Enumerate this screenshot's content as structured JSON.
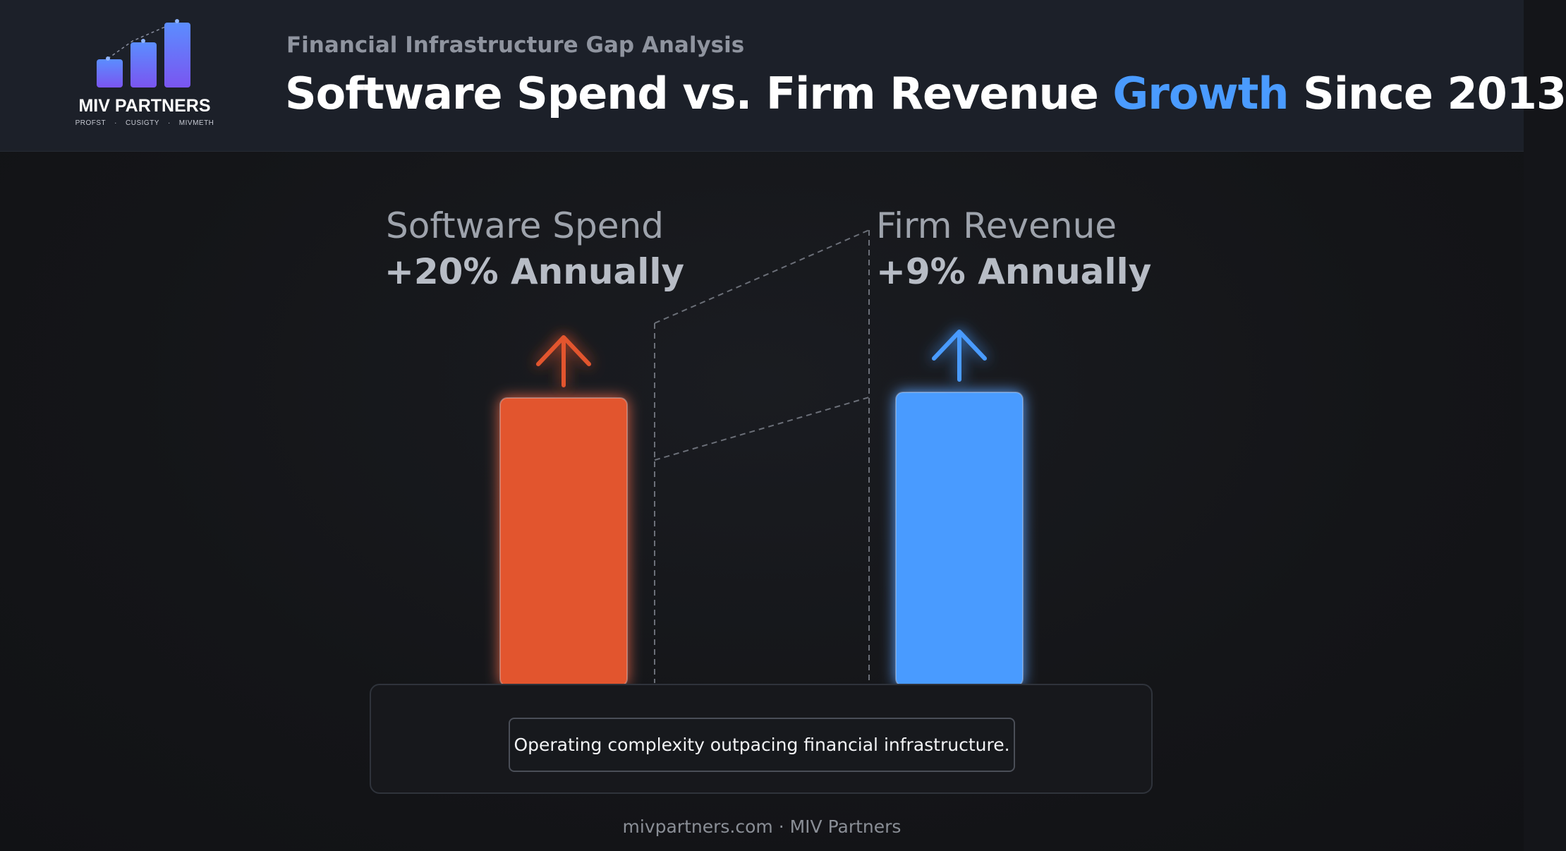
{
  "brand": {
    "name": "MIV PARTNERS",
    "tagline": [
      "PROFST",
      "CUSIGTY",
      "MIVMETH"
    ],
    "logo_colors": [
      "#6a5cf0",
      "#4e8cff"
    ]
  },
  "header": {
    "eyebrow": "Financial Infrastructure Gap Analysis",
    "title_before": "Software Spend vs. Firm Revenue ",
    "title_accent": "Growth",
    "title_after": " Since 2013",
    "accent_color": "#4a9bff"
  },
  "chart_data": {
    "type": "bar",
    "title": "Software Spend vs. Firm Revenue Growth Since 2013",
    "categories": [
      "Software Spend",
      "Firm Revenue"
    ],
    "series": [
      {
        "name": "Software Spend",
        "label": "+20% Annually",
        "value": 20,
        "unit": "% annually",
        "color": "#e2552f",
        "arrow": "up-arrow-icon"
      },
      {
        "name": "Firm Revenue",
        "label": "+9% Annually",
        "value": 9,
        "unit": "% annually",
        "color": "#4a9bff",
        "arrow": "up-arrow-icon"
      }
    ],
    "grid": false,
    "legend": "none"
  },
  "caption": "Operating complexity outpacing financial infrastructure.",
  "footer": "mivpartners.com · MIV Partners"
}
